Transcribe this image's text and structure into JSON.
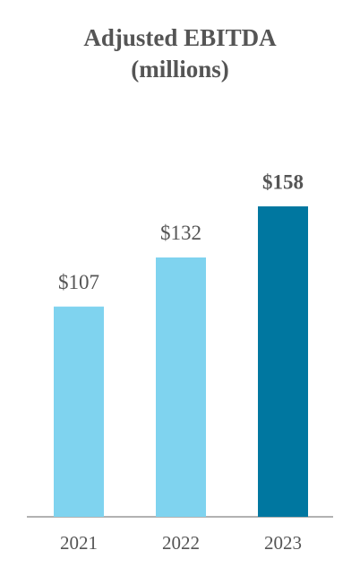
{
  "chart_data": {
    "type": "bar",
    "title": "Adjusted EBITDA",
    "subtitle": "(millions)",
    "categories": [
      "2021",
      "2022",
      "2023"
    ],
    "values": [
      107,
      132,
      158
    ],
    "value_labels": [
      "$107",
      "$132",
      "$158"
    ],
    "colors": [
      "#7fd3ef",
      "#7fd3ef",
      "#0077a0"
    ],
    "value_label_bold": [
      false,
      false,
      true
    ]
  }
}
